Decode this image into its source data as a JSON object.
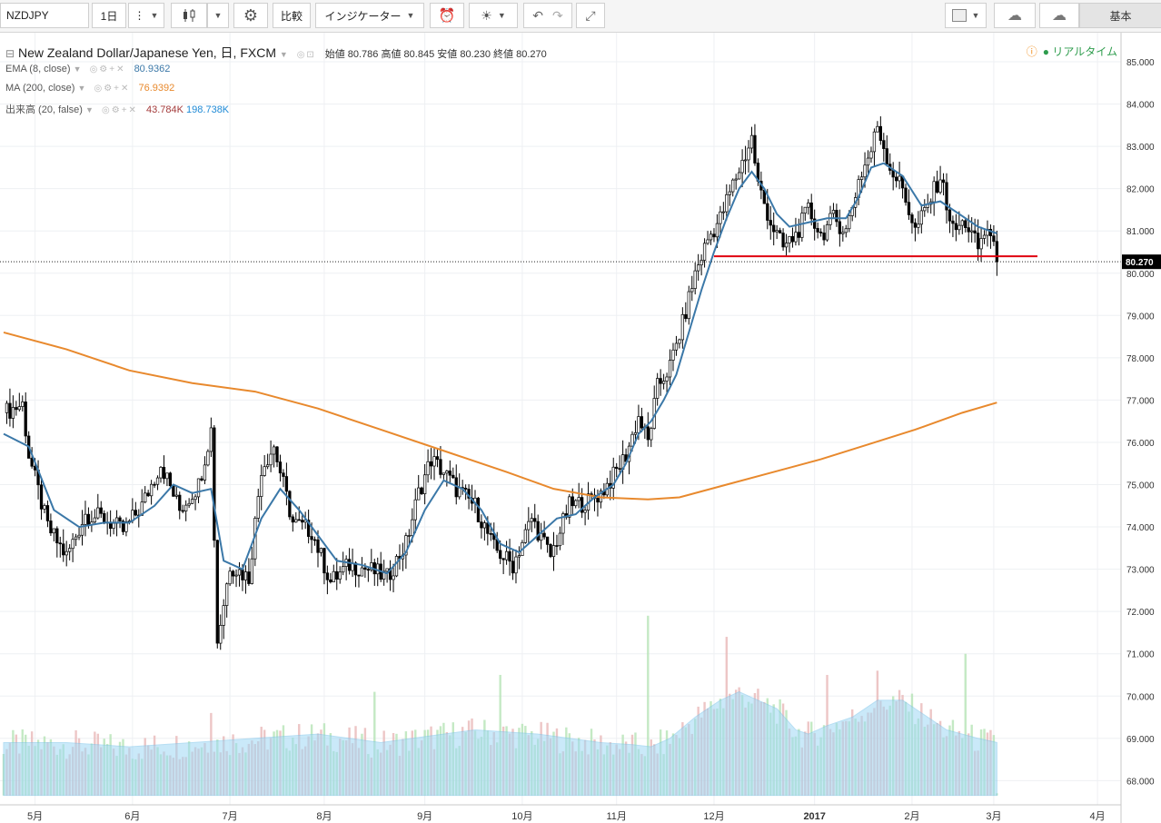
{
  "toolbar": {
    "symbol": "NZDJPY",
    "interval": "1日",
    "compare": "比較",
    "indicators": "インジケーター",
    "layout_tab": "基本",
    "icons": [
      "menu-dots-icon",
      "candle-style-icon",
      "settings-gear-icon",
      "alert-clock-icon",
      "idea-bulb-icon",
      "undo-icon",
      "redo-icon",
      "fullscreen-icon",
      "layout-square-icon",
      "cloud-download-icon",
      "cloud-upload-icon"
    ]
  },
  "header": {
    "title": "New Zealand Dollar/Japanese Yen, 日, FXCM",
    "open_label": "始値",
    "open": "80.786",
    "high_label": "高値",
    "high": "80.845",
    "low_label": "安値",
    "low": "80.230",
    "close_label": "終値",
    "close": "80.270",
    "realtime": "リアルタイム"
  },
  "indicators": {
    "ema": {
      "label": "EMA (8, close)",
      "value": "80.9362",
      "color": "#3b78a8"
    },
    "ma": {
      "label": "MA (200, close)",
      "value": "76.9392",
      "color": "#e8892d"
    },
    "volume": {
      "label": "出来高 (20, false)",
      "value1": "43.784K",
      "value2": "198.738K",
      "color1": "#a33a3a",
      "color2": "#1f8ad6"
    }
  },
  "colors": {
    "up": "#ffffff",
    "down": "#000000",
    "support": "#e0000f",
    "volume_ma": "#9fd8f5",
    "vol_up": "#b5e3b5",
    "vol_down": "#e8b8b8"
  },
  "chart_data": {
    "type": "candlestick",
    "instrument": "NZDJPY",
    "timeframe": "日",
    "ylim": [
      67.6,
      85.3
    ],
    "y_ticks": [
      "85.000",
      "84.000",
      "83.000",
      "82.000",
      "81.000",
      "80.000",
      "79.000",
      "78.000",
      "77.000",
      "76.000",
      "75.000",
      "74.000",
      "73.000",
      "72.000",
      "71.000",
      "70.000",
      "69.000",
      "68.000"
    ],
    "x_ticks": [
      "5月",
      "6月",
      "7月",
      "8月",
      "9月",
      "10月",
      "11月",
      "12月",
      "2017",
      "2月",
      "3月",
      "4月"
    ],
    "last_price": "80.270",
    "support_level": 80.4,
    "close_path": [
      {
        "d": 0,
        "v": 76.7
      },
      {
        "d": 6,
        "v": 76.9
      },
      {
        "d": 8,
        "v": 75.7
      },
      {
        "d": 14,
        "v": 74.0
      },
      {
        "d": 20,
        "v": 73.3
      },
      {
        "d": 26,
        "v": 74.3
      },
      {
        "d": 32,
        "v": 74.2
      },
      {
        "d": 38,
        "v": 73.9
      },
      {
        "d": 44,
        "v": 74.5
      },
      {
        "d": 50,
        "v": 75.5
      },
      {
        "d": 56,
        "v": 74.4
      },
      {
        "d": 62,
        "v": 75.0
      },
      {
        "d": 66,
        "v": 76.3
      },
      {
        "d": 68,
        "v": 71.3
      },
      {
        "d": 72,
        "v": 73.1
      },
      {
        "d": 78,
        "v": 72.8
      },
      {
        "d": 82,
        "v": 75.4
      },
      {
        "d": 86,
        "v": 75.9
      },
      {
        "d": 92,
        "v": 74.1
      },
      {
        "d": 98,
        "v": 73.9
      },
      {
        "d": 104,
        "v": 72.7
      },
      {
        "d": 110,
        "v": 73.1
      },
      {
        "d": 116,
        "v": 73.0
      },
      {
        "d": 122,
        "v": 72.8
      },
      {
        "d": 128,
        "v": 73.6
      },
      {
        "d": 132,
        "v": 74.8
      },
      {
        "d": 136,
        "v": 75.6
      },
      {
        "d": 140,
        "v": 75.3
      },
      {
        "d": 144,
        "v": 74.9
      },
      {
        "d": 150,
        "v": 74.5
      },
      {
        "d": 156,
        "v": 73.5
      },
      {
        "d": 162,
        "v": 73.1
      },
      {
        "d": 168,
        "v": 74.2
      },
      {
        "d": 174,
        "v": 73.3
      },
      {
        "d": 180,
        "v": 74.5
      },
      {
        "d": 186,
        "v": 74.6
      },
      {
        "d": 190,
        "v": 74.8
      },
      {
        "d": 194,
        "v": 75.2
      },
      {
        "d": 198,
        "v": 75.7
      },
      {
        "d": 202,
        "v": 76.6
      },
      {
        "d": 205,
        "v": 76.0
      },
      {
        "d": 208,
        "v": 77.3
      },
      {
        "d": 212,
        "v": 77.8
      },
      {
        "d": 216,
        "v": 78.8
      },
      {
        "d": 220,
        "v": 80.0
      },
      {
        "d": 224,
        "v": 80.8
      },
      {
        "d": 228,
        "v": 81.3
      },
      {
        "d": 232,
        "v": 82.1
      },
      {
        "d": 236,
        "v": 82.8
      },
      {
        "d": 238,
        "v": 83.2
      },
      {
        "d": 240,
        "v": 82.1
      },
      {
        "d": 244,
        "v": 81.2
      },
      {
        "d": 248,
        "v": 80.6
      },
      {
        "d": 252,
        "v": 80.9
      },
      {
        "d": 256,
        "v": 81.5
      },
      {
        "d": 260,
        "v": 80.9
      },
      {
        "d": 264,
        "v": 81.3
      },
      {
        "d": 268,
        "v": 81.0
      },
      {
        "d": 272,
        "v": 82.2
      },
      {
        "d": 276,
        "v": 82.9
      },
      {
        "d": 278,
        "v": 83.5
      },
      {
        "d": 282,
        "v": 82.5
      },
      {
        "d": 286,
        "v": 82.0
      },
      {
        "d": 290,
        "v": 81.0
      },
      {
        "d": 294,
        "v": 81.6
      },
      {
        "d": 298,
        "v": 82.3
      },
      {
        "d": 302,
        "v": 81.0
      },
      {
        "d": 306,
        "v": 81.2
      },
      {
        "d": 310,
        "v": 80.6
      },
      {
        "d": 313,
        "v": 81.1
      },
      {
        "d": 316,
        "v": 80.27
      }
    ],
    "ema_path": [
      {
        "d": 0,
        "v": 76.2
      },
      {
        "d": 8,
        "v": 75.9
      },
      {
        "d": 16,
        "v": 74.4
      },
      {
        "d": 24,
        "v": 74.0
      },
      {
        "d": 32,
        "v": 74.1
      },
      {
        "d": 40,
        "v": 74.1
      },
      {
        "d": 48,
        "v": 74.5
      },
      {
        "d": 54,
        "v": 75.0
      },
      {
        "d": 60,
        "v": 74.8
      },
      {
        "d": 66,
        "v": 74.9
      },
      {
        "d": 70,
        "v": 73.2
      },
      {
        "d": 76,
        "v": 73.0
      },
      {
        "d": 82,
        "v": 74.2
      },
      {
        "d": 88,
        "v": 74.9
      },
      {
        "d": 94,
        "v": 74.4
      },
      {
        "d": 100,
        "v": 73.8
      },
      {
        "d": 106,
        "v": 73.2
      },
      {
        "d": 114,
        "v": 73.1
      },
      {
        "d": 122,
        "v": 72.9
      },
      {
        "d": 128,
        "v": 73.4
      },
      {
        "d": 134,
        "v": 74.4
      },
      {
        "d": 140,
        "v": 75.1
      },
      {
        "d": 146,
        "v": 74.9
      },
      {
        "d": 152,
        "v": 74.4
      },
      {
        "d": 158,
        "v": 73.6
      },
      {
        "d": 164,
        "v": 73.4
      },
      {
        "d": 170,
        "v": 73.8
      },
      {
        "d": 176,
        "v": 74.2
      },
      {
        "d": 182,
        "v": 74.3
      },
      {
        "d": 188,
        "v": 74.7
      },
      {
        "d": 194,
        "v": 75.0
      },
      {
        "d": 198,
        "v": 75.5
      },
      {
        "d": 202,
        "v": 76.2
      },
      {
        "d": 206,
        "v": 76.5
      },
      {
        "d": 210,
        "v": 77.0
      },
      {
        "d": 214,
        "v": 77.6
      },
      {
        "d": 218,
        "v": 78.6
      },
      {
        "d": 222,
        "v": 79.6
      },
      {
        "d": 226,
        "v": 80.5
      },
      {
        "d": 230,
        "v": 81.3
      },
      {
        "d": 234,
        "v": 82.0
      },
      {
        "d": 238,
        "v": 82.4
      },
      {
        "d": 242,
        "v": 82.0
      },
      {
        "d": 246,
        "v": 81.4
      },
      {
        "d": 250,
        "v": 81.1
      },
      {
        "d": 256,
        "v": 81.2
      },
      {
        "d": 262,
        "v": 81.3
      },
      {
        "d": 268,
        "v": 81.3
      },
      {
        "d": 272,
        "v": 81.8
      },
      {
        "d": 276,
        "v": 82.5
      },
      {
        "d": 280,
        "v": 82.6
      },
      {
        "d": 286,
        "v": 82.3
      },
      {
        "d": 292,
        "v": 81.6
      },
      {
        "d": 298,
        "v": 81.7
      },
      {
        "d": 304,
        "v": 81.4
      },
      {
        "d": 310,
        "v": 81.1
      },
      {
        "d": 316,
        "v": 80.94
      }
    ],
    "ma200_path": [
      {
        "d": 0,
        "v": 78.6
      },
      {
        "d": 20,
        "v": 78.2
      },
      {
        "d": 40,
        "v": 77.7
      },
      {
        "d": 60,
        "v": 77.4
      },
      {
        "d": 80,
        "v": 77.2
      },
      {
        "d": 100,
        "v": 76.8
      },
      {
        "d": 120,
        "v": 76.3
      },
      {
        "d": 140,
        "v": 75.8
      },
      {
        "d": 160,
        "v": 75.3
      },
      {
        "d": 175,
        "v": 74.9
      },
      {
        "d": 190,
        "v": 74.7
      },
      {
        "d": 205,
        "v": 74.65
      },
      {
        "d": 215,
        "v": 74.7
      },
      {
        "d": 230,
        "v": 75.0
      },
      {
        "d": 245,
        "v": 75.3
      },
      {
        "d": 260,
        "v": 75.6
      },
      {
        "d": 275,
        "v": 75.95
      },
      {
        "d": 290,
        "v": 76.3
      },
      {
        "d": 305,
        "v": 76.7
      },
      {
        "d": 316,
        "v": 76.94
      }
    ],
    "volume_ma_path": [
      {
        "d": 0,
        "v": 68.9
      },
      {
        "d": 20,
        "v": 68.9
      },
      {
        "d": 40,
        "v": 68.8
      },
      {
        "d": 60,
        "v": 68.9
      },
      {
        "d": 80,
        "v": 69.0
      },
      {
        "d": 100,
        "v": 69.1
      },
      {
        "d": 120,
        "v": 68.9
      },
      {
        "d": 140,
        "v": 69.1
      },
      {
        "d": 150,
        "v": 69.2
      },
      {
        "d": 170,
        "v": 69.1
      },
      {
        "d": 190,
        "v": 68.9
      },
      {
        "d": 200,
        "v": 68.85
      },
      {
        "d": 206,
        "v": 68.8
      },
      {
        "d": 212,
        "v": 69.0
      },
      {
        "d": 220,
        "v": 69.5
      },
      {
        "d": 228,
        "v": 69.9
      },
      {
        "d": 234,
        "v": 70.1
      },
      {
        "d": 240,
        "v": 69.9
      },
      {
        "d": 246,
        "v": 69.7
      },
      {
        "d": 252,
        "v": 69.2
      },
      {
        "d": 256,
        "v": 69.1
      },
      {
        "d": 262,
        "v": 69.3
      },
      {
        "d": 270,
        "v": 69.5
      },
      {
        "d": 278,
        "v": 69.9
      },
      {
        "d": 286,
        "v": 69.9
      },
      {
        "d": 292,
        "v": 69.6
      },
      {
        "d": 300,
        "v": 69.2
      },
      {
        "d": 310,
        "v": 69.0
      },
      {
        "d": 316,
        "v": 68.9
      }
    ],
    "volume_spikes": [
      {
        "d": 66,
        "v": 69.6
      },
      {
        "d": 118,
        "v": 70.1
      },
      {
        "d": 158,
        "v": 70.5
      },
      {
        "d": 205,
        "v": 71.9
      },
      {
        "d": 230,
        "v": 71.4
      },
      {
        "d": 262,
        "v": 70.5
      },
      {
        "d": 278,
        "v": 70.6
      },
      {
        "d": 306,
        "v": 71.0
      },
      {
        "d": 316,
        "v": 67.7
      }
    ]
  }
}
